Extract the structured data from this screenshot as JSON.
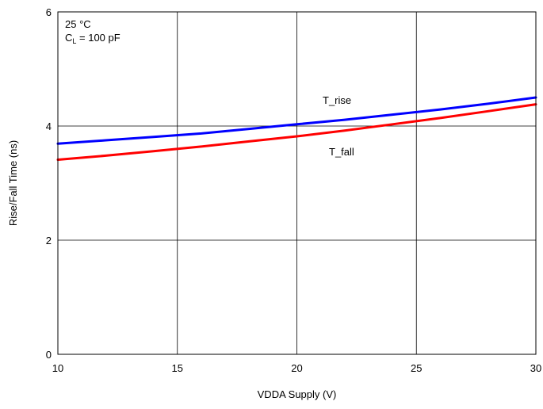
{
  "chart_data": {
    "type": "line",
    "xlabel": "VDDA Supply (V)",
    "ylabel": "Rise/Fall Time (ns)",
    "xlim": [
      10,
      30
    ],
    "ylim": [
      0,
      6
    ],
    "xticks": [
      10,
      15,
      20,
      25,
      30
    ],
    "yticks": [
      0,
      2,
      4,
      6
    ],
    "grid": true,
    "annotations": {
      "temperature": "25 °C",
      "load_main": "C",
      "load_sub": "L",
      "load_rest": " = 100 pF"
    },
    "series": [
      {
        "name": "T_rise",
        "color": "#0000ff",
        "x": [
          10,
          12,
          14,
          16,
          18,
          20,
          22,
          24,
          26,
          28,
          30
        ],
        "values": [
          3.69,
          3.75,
          3.81,
          3.87,
          3.95,
          4.03,
          4.11,
          4.2,
          4.29,
          4.39,
          4.5
        ]
      },
      {
        "name": "T_fall",
        "color": "#ff0000",
        "x": [
          10,
          12,
          14,
          16,
          18,
          20,
          22,
          24,
          26,
          28,
          30
        ],
        "values": [
          3.41,
          3.48,
          3.56,
          3.64,
          3.73,
          3.82,
          3.92,
          4.03,
          4.14,
          4.26,
          4.38
        ]
      }
    ]
  }
}
